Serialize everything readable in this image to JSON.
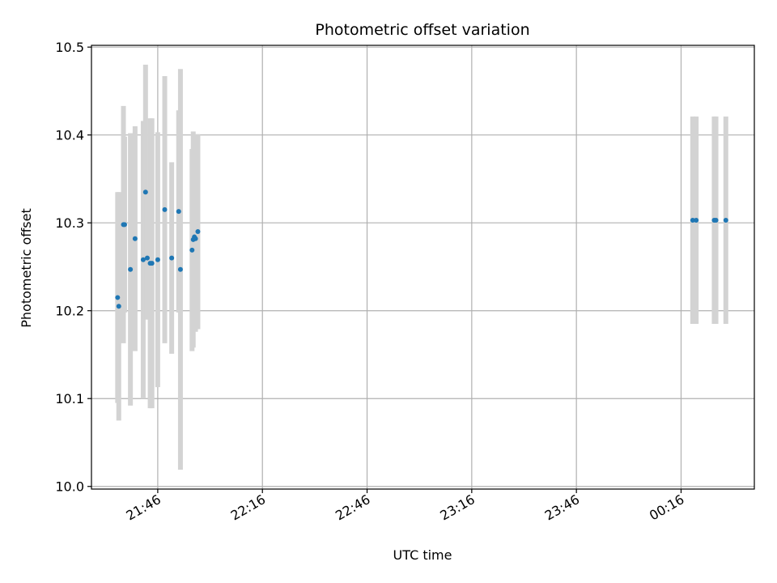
{
  "chart_data": {
    "type": "scatter",
    "title": "Photometric offset variation",
    "xlabel": "UTC time",
    "ylabel": "Photometric offset",
    "x_axis": {
      "kind": "time",
      "range": [
        "21:27",
        "00:37"
      ],
      "ticks": [
        "21:46",
        "22:16",
        "22:46",
        "23:16",
        "23:46",
        "00:16"
      ]
    },
    "y_axis": {
      "range": [
        9.997,
        10.502
      ],
      "ticks": [
        "10.0",
        "10.1",
        "10.2",
        "10.3",
        "10.4",
        "10.5"
      ]
    },
    "grid": true,
    "colors": {
      "point": "#1f77b4",
      "errorbar": "#d3d3d3",
      "grid": "#b0b0b0"
    },
    "series": [
      {
        "points": [
          {
            "t": "21:34:30",
            "y": 10.215,
            "err": 0.12
          },
          {
            "t": "21:34:50",
            "y": 10.205,
            "err": 0.13
          },
          {
            "t": "21:36:10",
            "y": 10.298,
            "err": 0.135
          },
          {
            "t": "21:36:30",
            "y": 10.298,
            "err": 0.1
          },
          {
            "t": "21:38:10",
            "y": 10.247,
            "err": 0.155
          },
          {
            "t": "21:39:30",
            "y": 10.282,
            "err": 0.128
          },
          {
            "t": "21:41:50",
            "y": 10.258,
            "err": 0.158
          },
          {
            "t": "21:42:30",
            "y": 10.335,
            "err": 0.145
          },
          {
            "t": "21:43:00",
            "y": 10.26,
            "err": 0.07
          },
          {
            "t": "21:43:50",
            "y": 10.254,
            "err": 0.165
          },
          {
            "t": "21:44:20",
            "y": 10.254,
            "err": 0.165
          },
          {
            "t": "21:46:00",
            "y": 10.258,
            "err": 0.145
          },
          {
            "t": "21:48:00",
            "y": 10.315,
            "err": 0.152
          },
          {
            "t": "21:50:00",
            "y": 10.26,
            "err": 0.109
          },
          {
            "t": "21:52:00",
            "y": 10.313,
            "err": 0.115
          },
          {
            "t": "21:52:30",
            "y": 10.247,
            "err": 0.228
          },
          {
            "t": "21:55:50",
            "y": 10.269,
            "err": 0.115
          },
          {
            "t": "21:56:10",
            "y": 10.281,
            "err": 0.123
          },
          {
            "t": "21:56:30",
            "y": 10.284,
            "err": 0.106
          },
          {
            "t": "21:56:50",
            "y": 10.282,
            "err": 0.106
          },
          {
            "t": "21:57:30",
            "y": 10.29,
            "err": 0.111
          },
          {
            "t": "00:19:20",
            "y": 10.303,
            "err": 0.118
          },
          {
            "t": "00:20:20",
            "y": 10.303,
            "err": 0.118
          },
          {
            "t": "00:25:30",
            "y": 10.303,
            "err": 0.118
          },
          {
            "t": "00:26:00",
            "y": 10.303,
            "err": 0.118
          },
          {
            "t": "00:28:50",
            "y": 10.303,
            "err": 0.118
          }
        ]
      }
    ]
  }
}
